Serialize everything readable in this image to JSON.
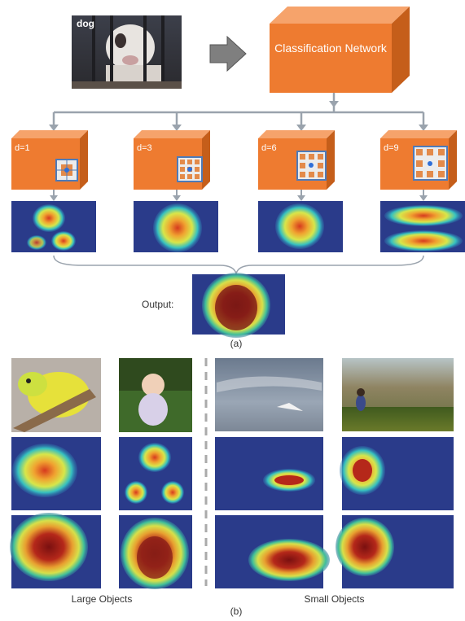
{
  "part_a": {
    "input_label": "dog",
    "network_label": "Classification Network",
    "branches": [
      {
        "label": "d=1"
      },
      {
        "label": "d=3"
      },
      {
        "label": "d=6"
      },
      {
        "label": "d=9"
      }
    ],
    "output_label": "Output:",
    "caption": "(a)"
  },
  "part_b": {
    "group_large": "Large Objects",
    "group_small": "Small Objects",
    "caption": "(b)"
  },
  "colors": {
    "box_front": "#ee7b30",
    "box_top": "#f6a36b",
    "box_side": "#c55e1a",
    "connector": "#9aa3ad",
    "kernel_border": "#4e7ab8",
    "kernel_cell": "#e38a4a",
    "kernel_dot": "#2f6fd8"
  }
}
